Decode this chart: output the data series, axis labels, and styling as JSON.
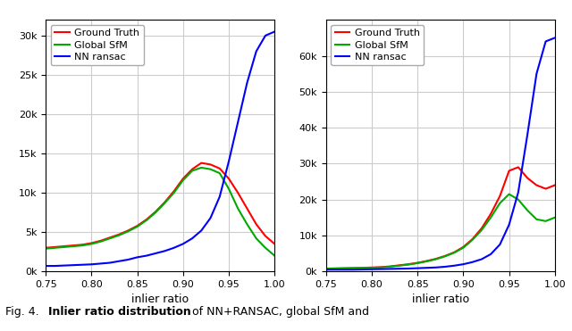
{
  "left_plot": {
    "x": [
      0.75,
      0.76,
      0.77,
      0.78,
      0.79,
      0.8,
      0.81,
      0.82,
      0.83,
      0.84,
      0.85,
      0.86,
      0.87,
      0.88,
      0.89,
      0.9,
      0.91,
      0.92,
      0.93,
      0.94,
      0.95,
      0.96,
      0.97,
      0.98,
      0.99,
      1.0
    ],
    "ground_truth": [
      3000,
      3100,
      3200,
      3300,
      3400,
      3600,
      3900,
      4300,
      4700,
      5200,
      5800,
      6600,
      7600,
      8800,
      10200,
      11800,
      13000,
      13800,
      13600,
      13100,
      11800,
      10000,
      8000,
      6000,
      4500,
      3500
    ],
    "global_sfm": [
      2900,
      3000,
      3100,
      3200,
      3300,
      3500,
      3800,
      4200,
      4600,
      5100,
      5700,
      6500,
      7500,
      8700,
      10000,
      11600,
      12800,
      13200,
      13000,
      12500,
      10500,
      8000,
      6000,
      4200,
      3000,
      2000
    ],
    "nn_ransac": [
      700,
      700,
      750,
      800,
      850,
      900,
      1000,
      1100,
      1300,
      1500,
      1800,
      2000,
      2300,
      2600,
      3000,
      3500,
      4200,
      5200,
      6800,
      9500,
      14000,
      19000,
      24000,
      28000,
      30000,
      30500
    ],
    "ylim": [
      0,
      32000
    ],
    "yticks": [
      0,
      5000,
      10000,
      15000,
      20000,
      25000,
      30000
    ]
  },
  "right_plot": {
    "x": [
      0.75,
      0.76,
      0.77,
      0.78,
      0.79,
      0.8,
      0.81,
      0.82,
      0.83,
      0.84,
      0.85,
      0.86,
      0.87,
      0.88,
      0.89,
      0.9,
      0.91,
      0.92,
      0.93,
      0.94,
      0.95,
      0.96,
      0.97,
      0.98,
      0.99,
      1.0
    ],
    "ground_truth": [
      800,
      850,
      900,
      950,
      1000,
      1100,
      1200,
      1400,
      1700,
      2000,
      2400,
      2900,
      3500,
      4300,
      5300,
      6800,
      9000,
      12000,
      16000,
      21000,
      28000,
      29000,
      26000,
      24000,
      23000,
      24000
    ],
    "global_sfm": [
      750,
      800,
      850,
      900,
      950,
      1000,
      1100,
      1300,
      1600,
      1900,
      2300,
      2800,
      3400,
      4200,
      5200,
      6600,
      8800,
      11500,
      15000,
      19000,
      21500,
      20000,
      17000,
      14500,
      14000,
      15000
    ],
    "nn_ransac": [
      500,
      500,
      500,
      500,
      550,
      600,
      650,
      700,
      750,
      800,
      900,
      1000,
      1100,
      1300,
      1600,
      2000,
      2600,
      3400,
      4800,
      7500,
      13000,
      22000,
      38000,
      55000,
      64000,
      65000
    ],
    "ylim": [
      0,
      70000
    ],
    "yticks": [
      0,
      10000,
      20000,
      30000,
      40000,
      50000,
      60000
    ]
  },
  "xlabel": "inlier ratio",
  "xticks": [
    0.75,
    0.8,
    0.85,
    0.9,
    0.95,
    1.0
  ],
  "legend_labels": [
    "Ground Truth",
    "Global SfM",
    "NN ransac"
  ],
  "line_colors": [
    "#ff0000",
    "#00aa00",
    "#0000ff"
  ],
  "grid_color": "#cccccc",
  "background_color": "#ffffff",
  "caption_prefix": "Fig. 4.",
  "caption_bold": "Inlier ratio distribution",
  "caption_rest": " of NN+RANSAC, global SfM and"
}
